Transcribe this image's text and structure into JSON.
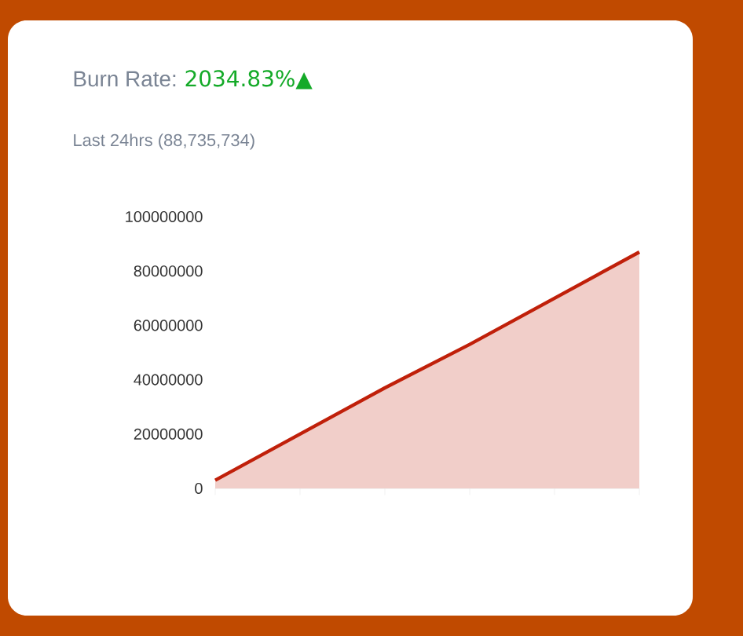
{
  "chart_data": {
    "type": "area",
    "title": "Burn Rate:",
    "subtitle": "Last 24hrs (88,735,734)",
    "annotations": [
      "2034.83%▲"
    ],
    "categories": [
      null,
      null,
      null,
      null,
      null,
      null
    ],
    "series": [
      {
        "color": "#c0200a",
        "values": [
          3000000,
          20000000,
          37000000,
          53000000,
          70000000,
          87000000
        ]
      }
    ],
    "ylim": [
      0,
      100000000
    ],
    "yticks": [
      0,
      20000000,
      40000000,
      60000000,
      80000000,
      100000000
    ],
    "grid": false
  }
}
